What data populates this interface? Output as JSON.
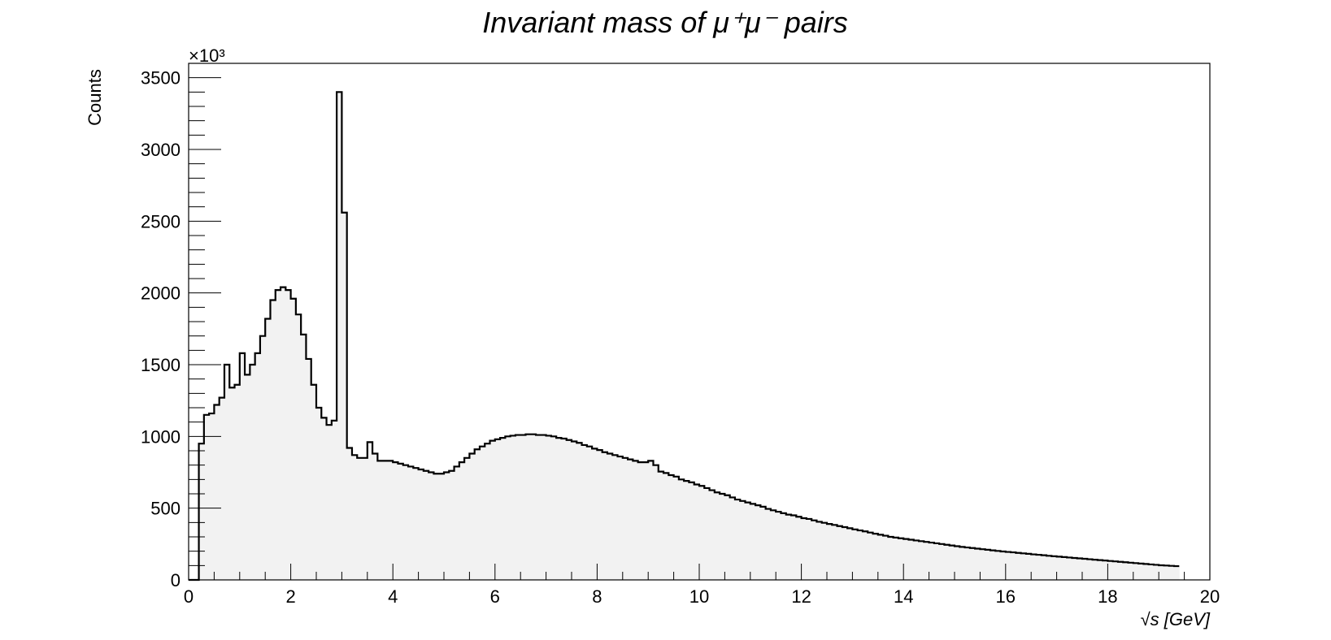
{
  "chart_data": {
    "type": "histogram",
    "title": "Invariant mass of μ⁺μ⁻ pairs",
    "xlabel": "√s  [GeV]",
    "ylabel": "Counts",
    "y_multiplier": "×10³",
    "xlim": [
      0,
      20
    ],
    "ylim": [
      0,
      3600
    ],
    "x_ticks": [
      "0",
      "2",
      "4",
      "6",
      "8",
      "10",
      "12",
      "14",
      "16",
      "18",
      "20"
    ],
    "y_ticks": [
      "0",
      "500",
      "1000",
      "1500",
      "2000",
      "2500",
      "3000",
      "3500"
    ],
    "fill_color": "#f2f2f2",
    "line_color": "#000000",
    "bin_width": 0.1,
    "bin_start": 0.0,
    "values": [
      0,
      0,
      950,
      1150,
      1160,
      1220,
      1270,
      1500,
      1340,
      1360,
      1580,
      1430,
      1500,
      1580,
      1700,
      1820,
      1950,
      2020,
      2040,
      2020,
      1960,
      1850,
      1710,
      1540,
      1360,
      1200,
      1130,
      1080,
      1110,
      3400,
      2560,
      920,
      870,
      850,
      850,
      960,
      880,
      830,
      830,
      830,
      820,
      810,
      800,
      790,
      780,
      770,
      760,
      750,
      740,
      740,
      750,
      760,
      790,
      820,
      850,
      880,
      910,
      930,
      950,
      970,
      980,
      990,
      1000,
      1005,
      1010,
      1010,
      1015,
      1015,
      1010,
      1010,
      1005,
      1000,
      990,
      985,
      975,
      965,
      955,
      940,
      930,
      915,
      905,
      890,
      880,
      870,
      860,
      850,
      840,
      830,
      820,
      820,
      830,
      800,
      755,
      745,
      730,
      720,
      700,
      690,
      680,
      665,
      655,
      640,
      625,
      610,
      600,
      590,
      575,
      560,
      550,
      540,
      530,
      520,
      510,
      495,
      485,
      475,
      465,
      455,
      450,
      440,
      430,
      425,
      415,
      405,
      398,
      390,
      383,
      375,
      368,
      360,
      352,
      345,
      338,
      330,
      322,
      315,
      308,
      300,
      295,
      290,
      285,
      280,
      275,
      270,
      265,
      260,
      255,
      250,
      245,
      240,
      235,
      230,
      226,
      222,
      218,
      214,
      210,
      206,
      202,
      198,
      195,
      192,
      188,
      185,
      182,
      178,
      175,
      172,
      168,
      165,
      162,
      159,
      156,
      153,
      150,
      147,
      144,
      141,
      138,
      135,
      132,
      129,
      126,
      123,
      120,
      117,
      114,
      111,
      108,
      105,
      102,
      100,
      98,
      96
    ]
  }
}
